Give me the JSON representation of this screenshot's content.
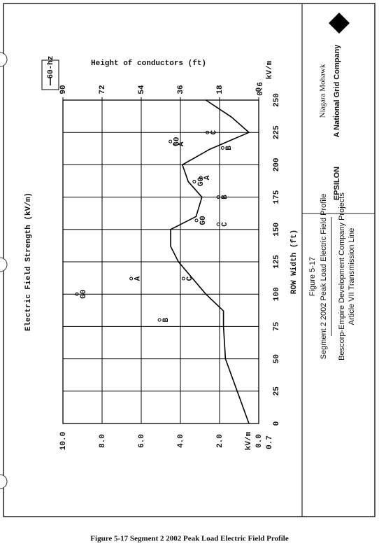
{
  "chart_data": {
    "type": "line",
    "x_label": "ROW Width (ft)",
    "y_label": "Electric Field Strength (kV/m)",
    "y2_label": "Height of conductors (ft)",
    "series": [
      {
        "name": "60-hz",
        "color": "#000000",
        "x": [
          0,
          25,
          50,
          75,
          87,
          100,
          125,
          137,
          150,
          160,
          175,
          187,
          200,
          212,
          225,
          237,
          250
        ],
        "values": [
          0.5,
          1.1,
          1.7,
          1.8,
          1.8,
          2.7,
          4.1,
          4.5,
          4.5,
          3.2,
          2.9,
          3.6,
          3.9,
          2.5,
          0.5,
          1.4,
          2.7
        ]
      },
      {
        "axis": "y2",
        "color": "#000000",
        "x": [
          100,
          112,
          80,
          112,
          157,
          154,
          175,
          187,
          190,
          218,
          216,
          213,
          225
        ],
        "values": [
          82,
          57,
          44,
          33,
          27,
          17,
          17,
          28,
          25,
          39,
          37,
          15,
          22
        ],
        "labels": [
          "G0",
          "A",
          "B",
          "C",
          "G0",
          "C",
          "B",
          "G0",
          "A",
          "G0",
          "A",
          "B",
          "C"
        ]
      }
    ],
    "xlim": [
      0,
      250
    ],
    "xticks": [
      0,
      25,
      50,
      75,
      100,
      125,
      150,
      175,
      200,
      225,
      250
    ],
    "ylim": [
      0,
      10
    ],
    "yticks": [
      {
        "value": 0,
        "label": "0.0"
      },
      {
        "value": 2,
        "label": "2.0"
      },
      {
        "value": 4,
        "label": "4.0"
      },
      {
        "value": 6,
        "label": "6.0"
      },
      {
        "value": 8,
        "label": "8.0"
      },
      {
        "value": 10,
        "label": "10.0"
      }
    ],
    "y2lim": [
      0,
      90
    ],
    "y2ticks": [
      0,
      18,
      36,
      54,
      72,
      90
    ],
    "grid": true,
    "annotations": [
      "kV/m",
      "0.6",
      "kV/m",
      "0.7"
    ]
  },
  "document": {
    "company": "Niagara Mohawk",
    "company_sub": "A National Grid Company",
    "partner": "EPSILON",
    "figure_number": "Figure 5-17",
    "figure_title": "Segment 2 2002 Peak Load Electric Field Profile",
    "project": "Bescorp-Empire Development Company Projects",
    "project_line": "Article VII Transmission Line",
    "caption": "Figure 5-17 Segment 2 2002 Peak Load Electric Field Profile"
  }
}
